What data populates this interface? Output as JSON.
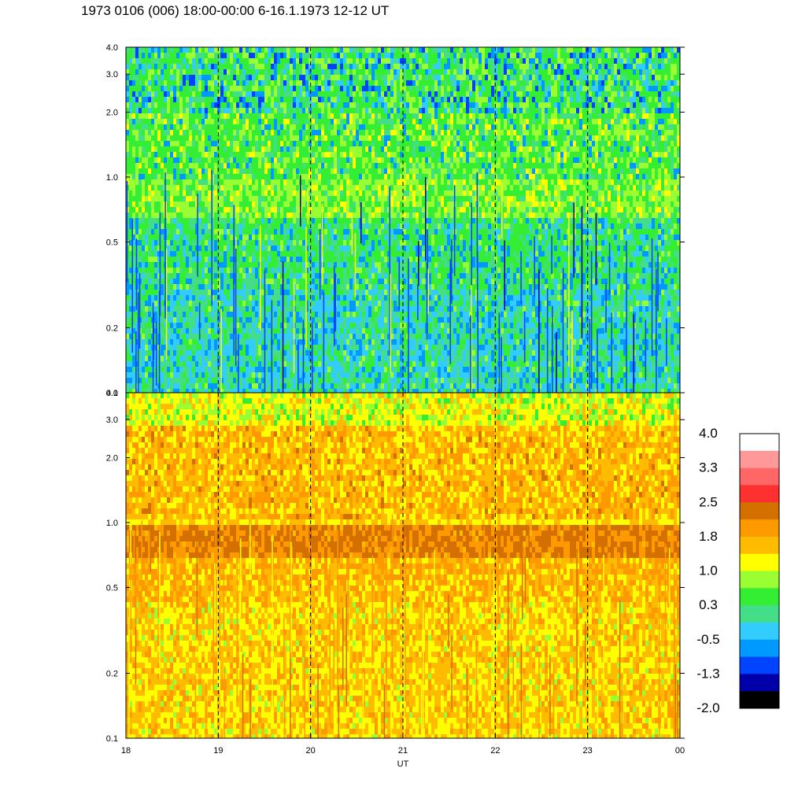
{
  "title": "1973 0106 (006) 18:00-00:00 6-16.1.1973  12-12 UT",
  "chart_data": {
    "type": "heatmap",
    "xlabel": "UT",
    "x_ticks": [
      "18",
      "19",
      "20",
      "21",
      "22",
      "23",
      "00"
    ],
    "x_range_hours": [
      18,
      24
    ],
    "dashed_gridlines_at_hours": [
      19,
      20,
      21,
      22,
      23
    ],
    "panels": [
      {
        "id": "upper",
        "y_scale": "log",
        "y_range": [
          0.1,
          4.0
        ],
        "y_ticks": [
          "0.1",
          "0.2",
          "0.5",
          "1.0",
          "2.0",
          "3.0",
          "4.0"
        ],
        "dominant_levels": "-0.5 to 1.0 (blue / cyan / green / yellow-green)"
      },
      {
        "id": "lower",
        "y_scale": "log",
        "y_range": [
          0.1,
          4.0
        ],
        "y_ticks": [
          "0.1",
          "0.2",
          "0.5",
          "1.0",
          "2.0",
          "3.0",
          "4.0"
        ],
        "dominant_levels": "1.0 to 1.8 (yellow / orange), band near 0.8-1.0 at 1.8-2.5"
      }
    ],
    "colorbar": {
      "labels": [
        "4.0",
        "3.3",
        "2.5",
        "1.8",
        "1.0",
        "0.3",
        "-0.5",
        "-1.3",
        "-2.0"
      ],
      "colors": [
        "#ffffff",
        "#ff9999",
        "#ff6666",
        "#ff3030",
        "#d47000",
        "#ff9900",
        "#ffbb00",
        "#ffff00",
        "#99ff33",
        "#33ee33",
        "#44dd88",
        "#33ccff",
        "#0099ff",
        "#0044ff",
        "#0000aa",
        "#000000"
      ]
    }
  }
}
